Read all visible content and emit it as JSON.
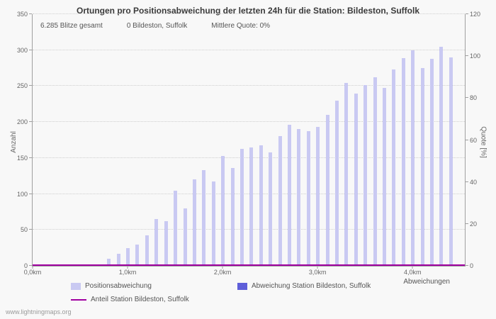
{
  "title": "Ortungen pro Positionsabweichung der letzten 24h für die Station: Bildeston, Suffolk",
  "stats": {
    "total_strikes": "6.285 Blitze gesamt",
    "station_strikes": "0 Bildeston, Suffolk",
    "mean_quote": "Mittlere Quote: 0%"
  },
  "axes": {
    "left_label": "Anzahl",
    "right_label": "Quote [%]",
    "x_label": "Abweichungen",
    "left_ticks": [
      0,
      50,
      100,
      150,
      200,
      250,
      300,
      350
    ],
    "right_ticks": [
      0,
      20,
      40,
      60,
      80,
      100,
      120
    ],
    "x_tick_labels": [
      "0,0km",
      "1,0km",
      "2,0km",
      "3,0km",
      "4,0km"
    ]
  },
  "colors": {
    "bar": "#c9c9f2",
    "station_bar": "#5f5fd9",
    "quote_line": "#a000a0",
    "grid": "#cfcfcf"
  },
  "legend": {
    "items": [
      {
        "label": "Positionsabweichung",
        "type": "swatch"
      },
      {
        "label": "Abweichung Station Bildeston, Suffolk",
        "type": "swatch"
      },
      {
        "label": "Anteil Station Bildeston, Suffolk",
        "type": "line"
      }
    ]
  },
  "watermark": "www.lightningmaps.org",
  "chart_data": {
    "type": "bar",
    "title": "Ortungen pro Positionsabweichung der letzten 24h für die Station: Bildeston, Suffolk",
    "xlabel": "Abweichungen",
    "ylabel_left": "Anzahl",
    "ylabel_right": "Quote [%]",
    "x_unit": "km",
    "x_range": [
      0,
      4.55
    ],
    "ylim_left": [
      0,
      350
    ],
    "ylim_right": [
      0,
      120
    ],
    "grid": "horizontal-dotted",
    "legend_position": "bottom",
    "x": [
      0.8,
      0.9,
      1.0,
      1.1,
      1.2,
      1.3,
      1.4,
      1.5,
      1.6,
      1.7,
      1.8,
      1.9,
      2.0,
      2.1,
      2.2,
      2.3,
      2.4,
      2.5,
      2.6,
      2.7,
      2.8,
      2.9,
      3.0,
      3.1,
      3.2,
      3.3,
      3.4,
      3.5,
      3.6,
      3.7,
      3.8,
      3.9,
      4.0,
      4.1,
      4.2,
      4.3,
      4.4
    ],
    "values": [
      10,
      17,
      25,
      30,
      42,
      65,
      62,
      105,
      80,
      120,
      133,
      117,
      153,
      136,
      163,
      165,
      168,
      158,
      180,
      196,
      190,
      187,
      193,
      210,
      230,
      254,
      240,
      251,
      262,
      247,
      273,
      289,
      300,
      275,
      288,
      305,
      290
    ],
    "series": [
      {
        "name": "Positionsabweichung",
        "axis": "left"
      },
      {
        "name": "Abweichung Station Bildeston, Suffolk",
        "axis": "left",
        "values_all_zero": 0
      },
      {
        "name": "Anteil Station Bildeston, Suffolk",
        "axis": "right",
        "value_percent": 0
      }
    ]
  }
}
